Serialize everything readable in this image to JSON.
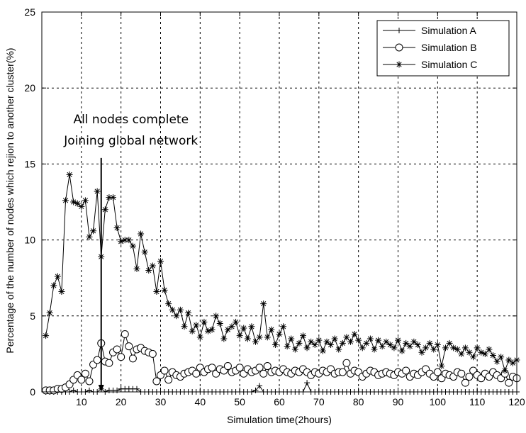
{
  "chart_data": {
    "type": "line",
    "title": "",
    "xlabel": "Simulation time(2hours)",
    "ylabel": "Percentage of the number of nodes which rejion to another cluster(%)",
    "xlim": [
      0,
      120
    ],
    "ylim": [
      0,
      25
    ],
    "xticks": [
      10,
      20,
      30,
      40,
      50,
      60,
      70,
      80,
      90,
      100,
      110,
      120
    ],
    "yticks": [
      0,
      5,
      10,
      15,
      20,
      25
    ],
    "grid": true,
    "legend_position": "top-right",
    "annotation": {
      "lines": [
        "All nodes complete",
        "Joining global network"
      ],
      "arrow_x": 15,
      "arrow_from_y": 15.4,
      "arrow_to_y": 0
    },
    "series": [
      {
        "name": "Simulation A",
        "marker": "plus",
        "x": [
          1,
          2,
          3,
          4,
          5,
          6,
          7,
          8,
          9,
          10,
          11,
          12,
          13,
          14,
          15,
          16,
          17,
          18,
          19,
          20,
          21,
          22,
          23,
          24,
          25,
          26,
          27,
          28,
          29,
          30,
          31,
          32,
          33,
          34,
          35,
          36,
          37,
          38,
          39,
          40,
          41,
          42,
          43,
          44,
          45,
          46,
          47,
          48,
          49,
          50,
          51,
          52,
          53,
          54,
          55,
          56,
          57,
          58,
          59,
          60,
          61,
          62,
          63,
          64,
          65,
          66,
          67,
          68,
          69,
          70,
          71,
          72,
          73,
          74,
          75,
          76,
          77,
          78,
          79,
          80,
          81,
          82,
          83,
          84,
          85,
          86,
          87,
          88,
          89,
          90,
          91,
          92,
          93,
          94,
          95,
          96,
          97,
          98,
          99,
          100,
          101,
          102,
          103,
          104,
          105,
          106,
          107,
          108,
          109,
          110,
          111,
          112,
          113,
          114,
          115,
          116,
          117,
          118,
          119,
          120
        ],
        "values": [
          0,
          0,
          0,
          0,
          0,
          0,
          0,
          0.1,
          0,
          0,
          0,
          0.1,
          0,
          0,
          0.2,
          0,
          0.1,
          0.1,
          0.1,
          0.2,
          0.2,
          0.2,
          0.2,
          0.2,
          0,
          0,
          0,
          0,
          0,
          0,
          0,
          0,
          0,
          0,
          0,
          0,
          0,
          0,
          0,
          0,
          0,
          0,
          0,
          0,
          0,
          0,
          0,
          0,
          0,
          0,
          0,
          0,
          0,
          0.1,
          0.4,
          0,
          0,
          0,
          0,
          0,
          0,
          0,
          0,
          0,
          0,
          0,
          0.6,
          0,
          0,
          0,
          0,
          0,
          0,
          0,
          0,
          0,
          0,
          0,
          0,
          0,
          0,
          0,
          0,
          0,
          0,
          0,
          0,
          0,
          0,
          0,
          0,
          0,
          0,
          0,
          0,
          0,
          0,
          0,
          0,
          0,
          0,
          0,
          0,
          0,
          0,
          0,
          0,
          0,
          0,
          0,
          0,
          0,
          0,
          0,
          0,
          0,
          0,
          0,
          0,
          0
        ]
      },
      {
        "name": "Simulation B",
        "marker": "circle",
        "x": [
          1,
          2,
          3,
          4,
          5,
          6,
          7,
          8,
          9,
          10,
          11,
          12,
          13,
          14,
          15,
          16,
          17,
          18,
          19,
          20,
          21,
          22,
          23,
          24,
          25,
          26,
          27,
          28,
          29,
          30,
          31,
          32,
          33,
          34,
          35,
          36,
          37,
          38,
          39,
          40,
          41,
          42,
          43,
          44,
          45,
          46,
          47,
          48,
          49,
          50,
          51,
          52,
          53,
          54,
          55,
          56,
          57,
          58,
          59,
          60,
          61,
          62,
          63,
          64,
          65,
          66,
          67,
          68,
          69,
          70,
          71,
          72,
          73,
          74,
          75,
          76,
          77,
          78,
          79,
          80,
          81,
          82,
          83,
          84,
          85,
          86,
          87,
          88,
          89,
          90,
          91,
          92,
          93,
          94,
          95,
          96,
          97,
          98,
          99,
          100,
          101,
          102,
          103,
          104,
          105,
          106,
          107,
          108,
          109,
          110,
          111,
          112,
          113,
          114,
          115,
          116,
          117,
          118,
          119,
          120
        ],
        "values": [
          0.1,
          0.1,
          0.1,
          0.2,
          0.2,
          0.3,
          0.5,
          0.8,
          1.1,
          0.8,
          1.2,
          0.7,
          1.8,
          2.1,
          3.2,
          2.0,
          1.9,
          2.6,
          2.8,
          2.3,
          3.8,
          3.0,
          2.2,
          2.8,
          2.9,
          2.7,
          2.6,
          2.5,
          0.7,
          1.1,
          1.4,
          0.8,
          1.3,
          1.1,
          1.0,
          1.2,
          1.3,
          1.4,
          1.2,
          1.6,
          1.3,
          1.5,
          1.6,
          1.2,
          1.5,
          1.4,
          1.7,
          1.3,
          1.4,
          1.6,
          1.2,
          1.5,
          1.3,
          1.4,
          1.6,
          1.2,
          1.7,
          1.3,
          1.4,
          1.3,
          1.5,
          1.3,
          1.2,
          1.4,
          1.3,
          1.5,
          1.3,
          1.1,
          1.3,
          1.2,
          1.4,
          1.3,
          1.5,
          1.2,
          1.3,
          1.3,
          1.9,
          1.2,
          1.4,
          1.3,
          1.0,
          1.2,
          1.4,
          1.3,
          1.1,
          1.2,
          1.3,
          1.2,
          1.1,
          1.3,
          1.2,
          1.4,
          1.0,
          1.2,
          1.1,
          1.3,
          1.5,
          1.2,
          1.0,
          1.3,
          0.9,
          1.2,
          1.1,
          1.0,
          1.3,
          1.2,
          0.6,
          1.0,
          1.4,
          1.1,
          0.9,
          1.2,
          1.0,
          1.3,
          1.1,
          0.9,
          1.2,
          0.6,
          1.0,
          0.9
        ]
      },
      {
        "name": "Simulation C",
        "marker": "star",
        "x": [
          1,
          2,
          3,
          4,
          5,
          6,
          7,
          8,
          9,
          10,
          11,
          12,
          13,
          14,
          15,
          16,
          17,
          18,
          19,
          20,
          21,
          22,
          23,
          24,
          25,
          26,
          27,
          28,
          29,
          30,
          31,
          32,
          33,
          34,
          35,
          36,
          37,
          38,
          39,
          40,
          41,
          42,
          43,
          44,
          45,
          46,
          47,
          48,
          49,
          50,
          51,
          52,
          53,
          54,
          55,
          56,
          57,
          58,
          59,
          60,
          61,
          62,
          63,
          64,
          65,
          66,
          67,
          68,
          69,
          70,
          71,
          72,
          73,
          74,
          75,
          76,
          77,
          78,
          79,
          80,
          81,
          82,
          83,
          84,
          85,
          86,
          87,
          88,
          89,
          90,
          91,
          92,
          93,
          94,
          95,
          96,
          97,
          98,
          99,
          100,
          101,
          102,
          103,
          104,
          105,
          106,
          107,
          108,
          109,
          110,
          111,
          112,
          113,
          114,
          115,
          116,
          117,
          118,
          119,
          120
        ],
        "values": [
          3.7,
          5.2,
          7.0,
          7.6,
          6.6,
          12.6,
          14.3,
          12.5,
          12.4,
          12.2,
          12.6,
          10.2,
          10.6,
          13.2,
          8.9,
          12.0,
          12.8,
          12.8,
          10.8,
          9.9,
          10.0,
          10.0,
          9.6,
          8.1,
          10.4,
          9.2,
          8.0,
          8.3,
          6.6,
          8.6,
          6.7,
          5.8,
          5.4,
          5.0,
          5.4,
          4.3,
          5.2,
          4.0,
          4.4,
          3.6,
          4.6,
          4.0,
          4.1,
          5.0,
          4.5,
          3.5,
          4.1,
          4.3,
          4.6,
          3.7,
          4.2,
          3.5,
          4.3,
          3.3,
          3.6,
          5.8,
          3.6,
          4.1,
          3.1,
          3.8,
          4.3,
          3.0,
          3.5,
          2.8,
          3.2,
          3.7,
          2.9,
          3.3,
          3.1,
          3.4,
          2.7,
          3.3,
          3.1,
          3.5,
          2.8,
          3.2,
          3.6,
          3.3,
          3.8,
          3.4,
          2.9,
          3.2,
          3.5,
          2.8,
          3.4,
          3.0,
          3.3,
          3.1,
          2.9,
          3.4,
          2.7,
          3.2,
          3.0,
          3.3,
          3.1,
          2.6,
          2.9,
          3.2,
          2.8,
          3.1,
          1.7,
          2.9,
          3.2,
          2.9,
          2.8,
          2.5,
          2.9,
          2.6,
          2.3,
          2.9,
          2.6,
          2.5,
          2.8,
          2.4,
          2.0,
          2.3,
          1.4,
          2.1,
          1.9,
          2.1
        ]
      }
    ]
  }
}
